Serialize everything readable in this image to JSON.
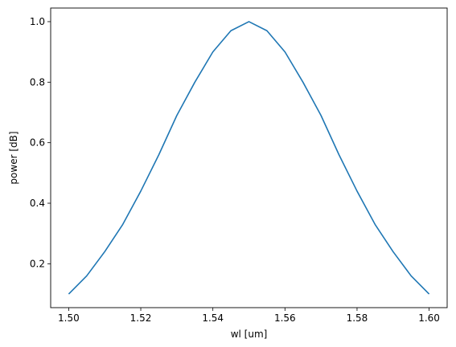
{
  "chart_data": {
    "type": "line",
    "title": "",
    "xlabel": "wl [um]",
    "ylabel": "power [dB]",
    "xlim": [
      1.495,
      1.605
    ],
    "ylim": [
      0.055,
      1.045
    ],
    "x_ticks": [
      "1.50",
      "1.52",
      "1.54",
      "1.56",
      "1.58",
      "1.60"
    ],
    "y_ticks": [
      "0.2",
      "0.4",
      "0.6",
      "0.8",
      "1.0"
    ],
    "grid": false,
    "legend": "none",
    "series": [
      {
        "color": "#1f77b4",
        "x": [
          1.5,
          1.505,
          1.51,
          1.515,
          1.52,
          1.525,
          1.53,
          1.535,
          1.54,
          1.545,
          1.55,
          1.555,
          1.56,
          1.565,
          1.57,
          1.575,
          1.58,
          1.585,
          1.59,
          1.595,
          1.6
        ],
        "y": [
          0.1,
          0.16,
          0.24,
          0.33,
          0.44,
          0.56,
          0.69,
          0.8,
          0.9,
          0.97,
          1.0,
          0.97,
          0.9,
          0.8,
          0.69,
          0.56,
          0.44,
          0.33,
          0.24,
          0.16,
          0.1
        ]
      }
    ]
  }
}
